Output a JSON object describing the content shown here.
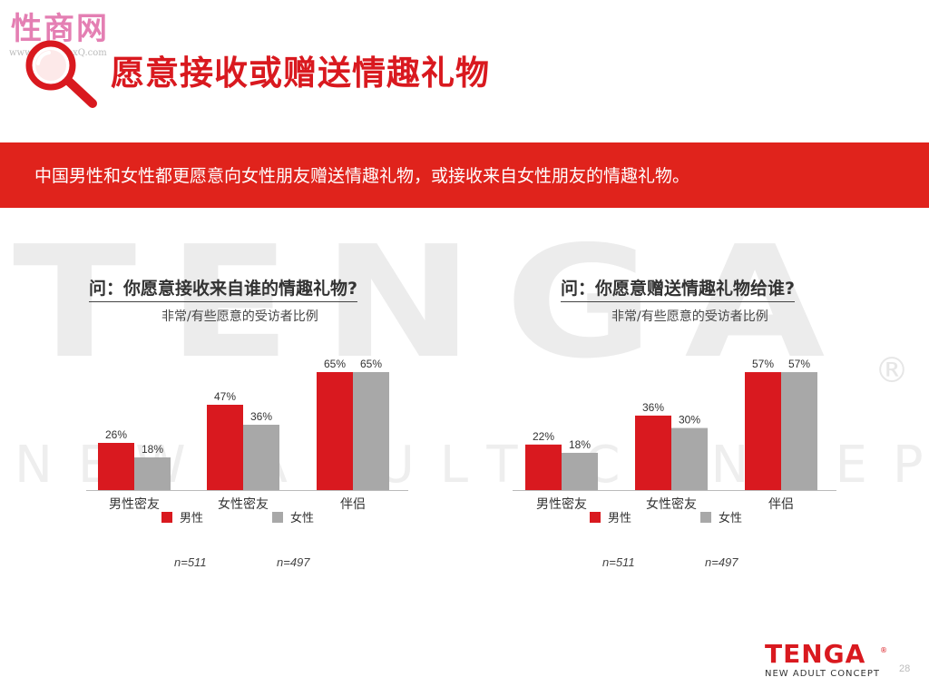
{
  "site_logo": "性商网",
  "site_url": "www.ChinaSexQ.com",
  "watermark": {
    "big": "TENGA",
    "reg": "®",
    "small": "NEW ADULT CONCEPT"
  },
  "page": {
    "title": "愿意接收或赠送情趣礼物",
    "banner": "中国男性和女性都更愿意向女性朋友赠送情趣礼物，或接收来自女性朋友的情趣礼物。",
    "page_number": "28"
  },
  "colors": {
    "male": "#d9191f",
    "female": "#a8a8a8",
    "accent": "#e0231c"
  },
  "brand": {
    "name": "TENGA",
    "reg": "®",
    "tagline": "NEW ADULT CONCEPT"
  },
  "chart_data": [
    {
      "type": "bar",
      "title": "问：你愿意接收来自谁的情趣礼物?",
      "subtitle": "非常/有些愿意的受访者比例",
      "categories": [
        "男性密友",
        "女性密友",
        "伴侣"
      ],
      "series": [
        {
          "name": "男性",
          "values": [
            26,
            47,
            65
          ],
          "labels": [
            "26%",
            "47%",
            "65%"
          ],
          "color": "#d9191f"
        },
        {
          "name": "女性",
          "values": [
            18,
            36,
            65
          ],
          "labels": [
            "18%",
            "36%",
            "65%"
          ],
          "color": "#a8a8a8"
        }
      ],
      "sample_sizes": [
        "n=511",
        "n=497"
      ],
      "ylim": [
        0,
        70
      ],
      "grid": false,
      "legend_position": "bottom"
    },
    {
      "type": "bar",
      "title": "问：你愿意赠送情趣礼物给谁?",
      "subtitle": "非常/有些愿意的受访者比例",
      "categories": [
        "男性密友",
        "女性密友",
        "伴侣"
      ],
      "series": [
        {
          "name": "男性",
          "values": [
            22,
            36,
            57
          ],
          "labels": [
            "22%",
            "36%",
            "57%"
          ],
          "color": "#d9191f"
        },
        {
          "name": "女性",
          "values": [
            18,
            30,
            57
          ],
          "labels": [
            "18%",
            "30%",
            "57%"
          ],
          "color": "#a8a8a8"
        }
      ],
      "sample_sizes": [
        "n=511",
        "n=497"
      ],
      "ylim": [
        0,
        70
      ],
      "grid": false,
      "legend_position": "bottom"
    }
  ]
}
